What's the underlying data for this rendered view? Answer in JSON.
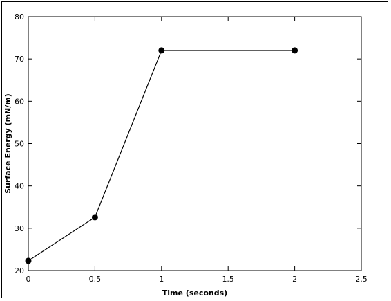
{
  "chart_data": {
    "type": "line",
    "title": "",
    "xlabel": "Time (seconds)",
    "ylabel": "Surface Energy (mN/m)",
    "xlim": [
      0,
      2.5
    ],
    "ylim": [
      20,
      80
    ],
    "x_ticks": [
      "0",
      "0.5",
      "1",
      "1.5",
      "2",
      "2.5"
    ],
    "y_ticks": [
      "20",
      "30",
      "40",
      "50",
      "60",
      "70",
      "80"
    ],
    "grid": false,
    "legend": "none",
    "series": [
      {
        "x": [
          0,
          0.5,
          1,
          2
        ],
        "y": [
          22.3,
          32.6,
          72,
          72
        ],
        "color": "#000000",
        "marker": "circle"
      }
    ]
  }
}
